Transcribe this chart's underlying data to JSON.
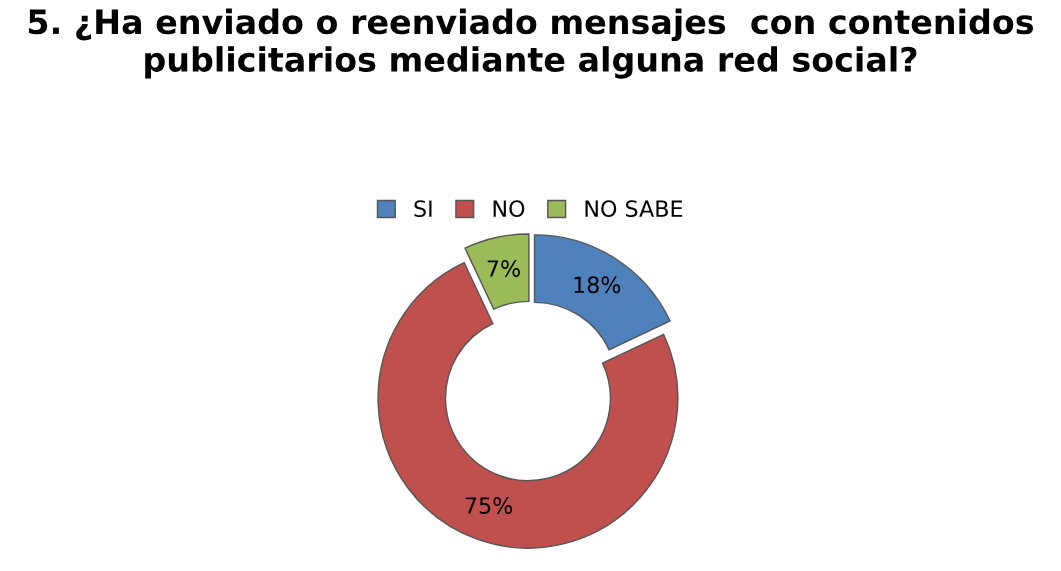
{
  "chart_data": {
    "type": "donut",
    "title": "5. ¿Ha enviado o reenviado mensajes  con contenidos publicitarios mediante alguna red social?",
    "categories": [
      "SI",
      "NO",
      "NO SABE"
    ],
    "values": [
      18,
      75,
      7
    ],
    "colors": [
      "#4f81bd",
      "#c0504d",
      "#9bbb59"
    ],
    "value_labels": [
      "18%",
      "75%",
      "7%"
    ],
    "legend": "top"
  }
}
